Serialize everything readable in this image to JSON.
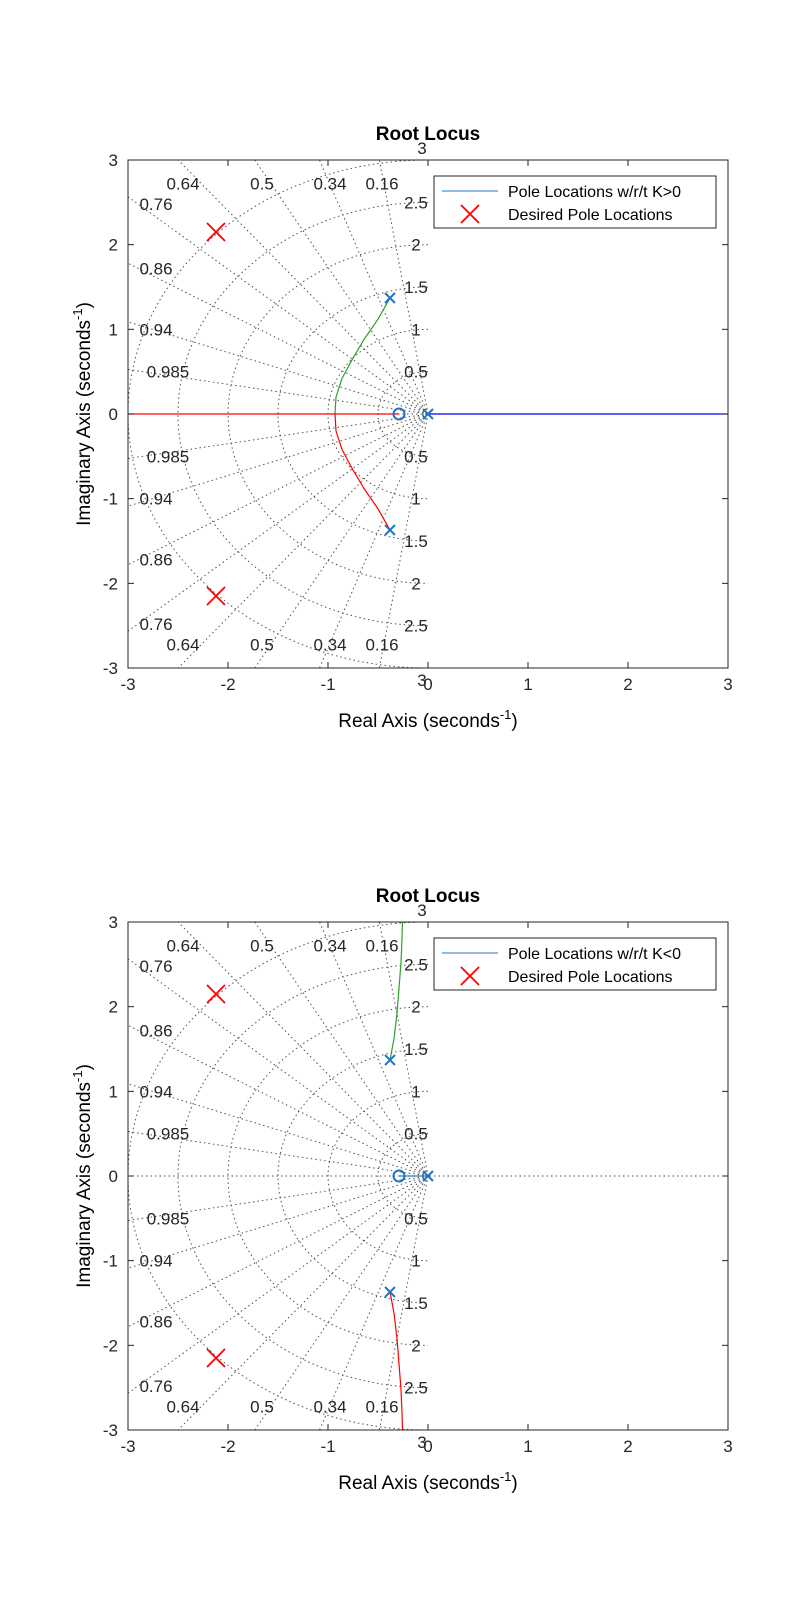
{
  "chart_data": [
    {
      "type": "line",
      "title": "Root Locus",
      "xlabel": "Real Axis (seconds",
      "ylabel": "Imaginary Axis (seconds",
      "label_exponent": "-1",
      "xlim": [
        -3,
        3
      ],
      "ylim": [
        -3,
        3
      ],
      "xticks": [
        "-3",
        "-2",
        "-1",
        "0",
        "1",
        "2",
        "3"
      ],
      "yticks": [
        "-3",
        "-2",
        "-1",
        "0",
        "1",
        "2",
        "3"
      ],
      "grid": true,
      "damping_labels": [
        "0.64",
        "0.5",
        "0.34",
        "0.16",
        "0.76",
        "0.86",
        "0.94",
        "0.985"
      ],
      "frequency_labels": [
        "0.5",
        "1",
        "1.5",
        "2",
        "2.5",
        "3"
      ],
      "legend": {
        "placement": "top-right",
        "entries": [
          "Pole Locations w/r/t K>0",
          "Desired Pole Locations"
        ]
      },
      "colors": {
        "pole_marker": "#1f77c4",
        "desired": "#ff0000",
        "branch_upper": "#2ca02c",
        "branch_lower": "#ff0000",
        "branch_real": "#0000ff",
        "branch_real_left": "#ff0000"
      },
      "open_loop_poles": [
        [
          0,
          0
        ],
        [
          -0.38,
          1.37
        ],
        [
          -0.38,
          -1.37
        ]
      ],
      "open_loop_zeros": [
        [
          -0.29,
          0
        ]
      ],
      "desired_poles": [
        [
          -2.12,
          2.15
        ],
        [
          -2.12,
          -2.15
        ]
      ],
      "series": [
        {
          "x": [
            -0.38,
            -0.5,
            -0.64,
            -0.76,
            -0.86,
            -0.92,
            -0.93
          ],
          "y": [
            1.37,
            1.12,
            0.88,
            0.64,
            0.42,
            0.2,
            0
          ]
        },
        {
          "x": [
            -0.38,
            -0.5,
            -0.64,
            -0.76,
            -0.86,
            -0.92,
            -0.93
          ],
          "y": [
            -1.37,
            -1.12,
            -0.88,
            -0.64,
            -0.42,
            -0.2,
            0
          ]
        },
        {
          "x": [
            -0.93,
            -3
          ],
          "y": [
            0,
            0
          ]
        },
        {
          "x": [
            -0.93,
            -0.29
          ],
          "y": [
            0,
            0
          ]
        },
        {
          "x": [
            0,
            3
          ],
          "y": [
            0,
            0
          ]
        }
      ]
    },
    {
      "type": "line",
      "title": "Root Locus",
      "xlabel": "Real Axis (seconds",
      "ylabel": "Imaginary Axis (seconds",
      "label_exponent": "-1",
      "xlim": [
        -3,
        3
      ],
      "ylim": [
        -3,
        3
      ],
      "xticks": [
        "-3",
        "-2",
        "-1",
        "0",
        "1",
        "2",
        "3"
      ],
      "yticks": [
        "-3",
        "-2",
        "-1",
        "0",
        "1",
        "2",
        "3"
      ],
      "grid": true,
      "damping_labels": [
        "0.64",
        "0.5",
        "0.34",
        "0.16",
        "0.76",
        "0.86",
        "0.94",
        "0.985"
      ],
      "frequency_labels": [
        "0.5",
        "1",
        "1.5",
        "2",
        "2.5",
        "3"
      ],
      "legend": {
        "placement": "top-right",
        "entries": [
          "Pole Locations w/r/t K<0",
          "Desired Pole Locations"
        ]
      },
      "colors": {
        "pole_marker": "#1f77c4",
        "desired": "#ff0000",
        "branch_upper": "#2ca02c",
        "branch_lower": "#ff0000",
        "branch_real": "#1f77c4"
      },
      "open_loop_poles": [
        [
          0,
          0
        ],
        [
          -0.38,
          1.37
        ],
        [
          -0.38,
          -1.37
        ]
      ],
      "open_loop_zeros": [
        [
          -0.29,
          0
        ]
      ],
      "desired_poles": [
        [
          -2.12,
          2.15
        ],
        [
          -2.12,
          -2.15
        ]
      ],
      "series": [
        {
          "x": [
            -0.38,
            -0.34,
            -0.31,
            -0.29,
            -0.27,
            -0.26,
            -0.255
          ],
          "y": [
            1.37,
            1.62,
            1.92,
            2.22,
            2.52,
            2.8,
            3.0
          ]
        },
        {
          "x": [
            -0.38,
            -0.34,
            -0.31,
            -0.29,
            -0.27,
            -0.26,
            -0.255
          ],
          "y": [
            -1.37,
            -1.62,
            -1.92,
            -2.22,
            -2.52,
            -2.8,
            -3.0
          ]
        },
        {
          "x": [
            -0.29,
            0
          ],
          "y": [
            0,
            0
          ]
        }
      ]
    }
  ]
}
